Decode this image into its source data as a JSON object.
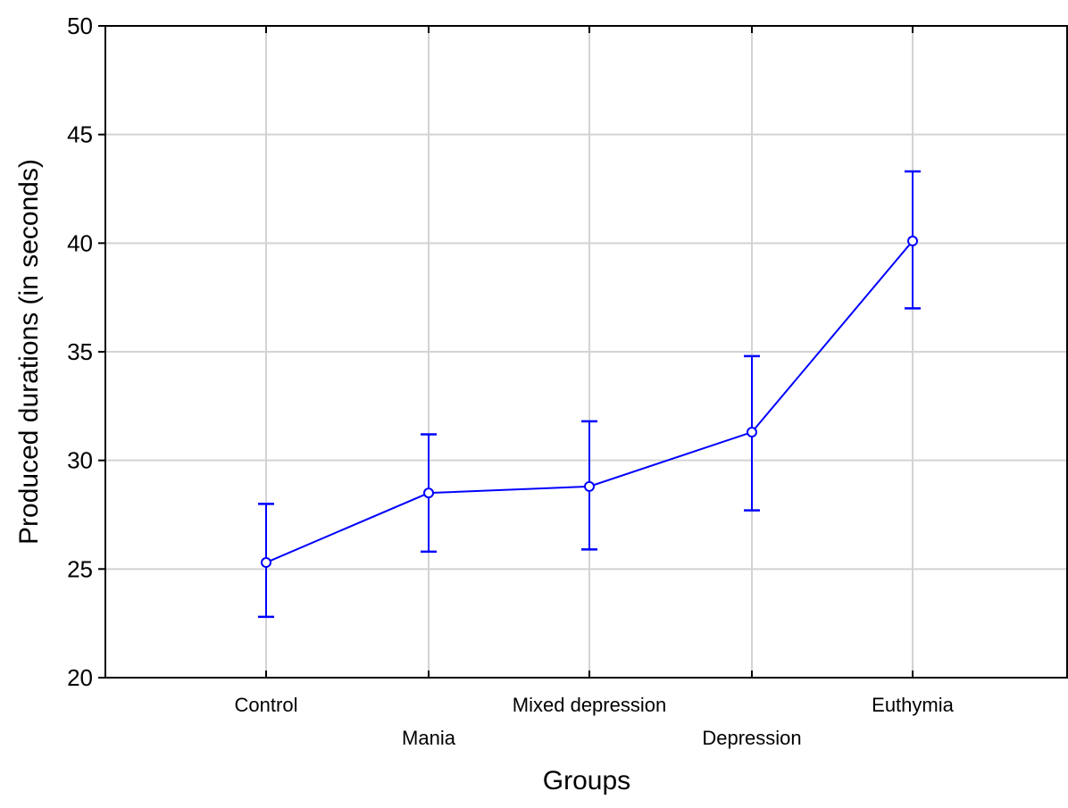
{
  "chart_data": {
    "type": "line",
    "xlabel": "Groups",
    "ylabel": "Produced durations (in seconds)",
    "ylim": [
      20,
      50
    ],
    "yticks": [
      20,
      25,
      30,
      35,
      40,
      45,
      50
    ],
    "grid": true,
    "categories": [
      "Control",
      "Mania",
      "Mixed depression",
      "Depression",
      "Euthymia"
    ],
    "series": [
      {
        "values": [
          25.3,
          28.5,
          28.8,
          31.3,
          40.1
        ],
        "error_low": [
          22.8,
          25.8,
          25.9,
          27.7,
          37.0
        ],
        "error_high": [
          28.0,
          31.2,
          31.8,
          34.8,
          43.3
        ],
        "color": "#0000ff"
      }
    ],
    "colors": {
      "series": "#0000ff",
      "grid": "#d3d3d3",
      "axis": "#000000"
    }
  }
}
